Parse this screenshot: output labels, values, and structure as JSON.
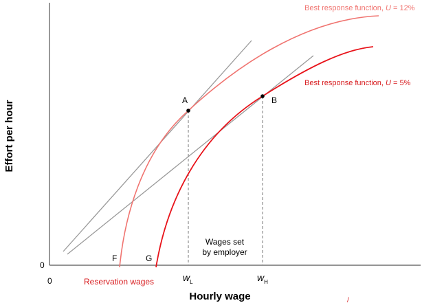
{
  "axes": {
    "x_title": "Hourly wage",
    "y_title": "Effort per hour",
    "origin_x_label": "0",
    "origin_y_label": "0"
  },
  "curves": {
    "u12_label": "Best response function, U = 12%",
    "u12_prefix": "Best response function, ",
    "u12_var": "U",
    "u12_suffix": " = 12%",
    "u5_label": "Best response function, U = 5%",
    "u5_prefix": "Best response function, ",
    "u5_var": "U",
    "u5_suffix": " = 5%",
    "u12_color": "#f07470",
    "u5_color": "#e8131a"
  },
  "points": {
    "a": "A",
    "b": "B",
    "f": "F",
    "g": "G"
  },
  "wages": {
    "wl_main": "w",
    "wl_sub": "L",
    "wh_main": "w",
    "wh_sub": "H"
  },
  "annotations": {
    "wages_set_line1": "Wages set",
    "wages_set_line2": "by employer",
    "reservation_wages": "Reservation wages",
    "corner_mark": "/"
  }
}
